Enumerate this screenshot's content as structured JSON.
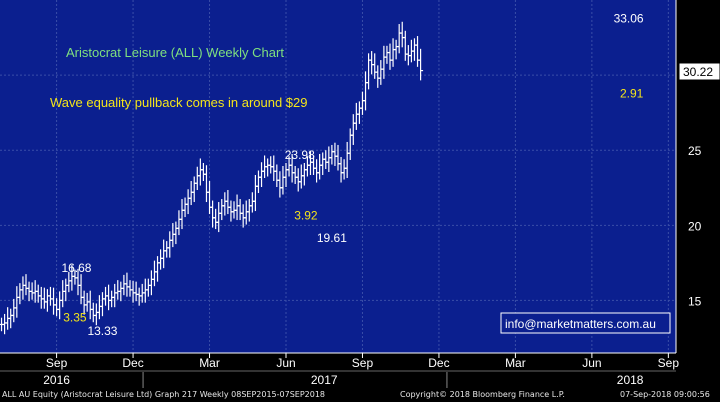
{
  "colors": {
    "background": "#000000",
    "plot_background": "#0b1f8f",
    "grid": "#3a4ea8",
    "bars": "#ffffff",
    "title_text": "#7fe07f",
    "annotation_text": "#f5e51a",
    "label_text": "#ffffff"
  },
  "chart_data": {
    "type": "ohlc",
    "title": "Aristocrat Leisure (ALL) Weekly Chart",
    "subtitle": "Wave equality pullback comes in around $29",
    "y_axis": {
      "ticks": [
        15,
        20,
        25,
        30
      ],
      "ylim": [
        11.5,
        35
      ],
      "position": "right",
      "grid": true
    },
    "x_axis": {
      "month_ticks": [
        {
          "label": "Sep",
          "x": 0.0
        },
        {
          "label": "Dec",
          "x": 0.5
        },
        {
          "label": "Mar",
          "x": 1.0
        },
        {
          "label": "Jun",
          "x": 1.5
        },
        {
          "label": "Sep",
          "x": 2.0
        },
        {
          "label": "Dec",
          "x": 2.5
        },
        {
          "label": "Mar",
          "x": 3.0
        },
        {
          "label": "Jun",
          "x": 3.5
        },
        {
          "label": "Sep",
          "x": 4.0
        }
      ],
      "year_labels": [
        {
          "label": "2016",
          "x": 0.0
        },
        {
          "label": "2017",
          "x": 1.75
        },
        {
          "label": "2018",
          "x": 3.75
        }
      ],
      "xlim": [
        -0.37,
        4.05
      ]
    },
    "last_price": 30.22,
    "price_labels": [
      {
        "text": "16.68",
        "x": 0.13,
        "y": 16.9,
        "color": "white"
      },
      {
        "text": "3.35",
        "x": 0.12,
        "y": 13.6,
        "color": "yellow"
      },
      {
        "text": "13.33",
        "x": 0.3,
        "y": 12.7,
        "color": "white"
      },
      {
        "text": "23.98",
        "x": 1.59,
        "y": 24.4,
        "color": "white"
      },
      {
        "text": "3.92",
        "x": 1.63,
        "y": 20.4,
        "color": "yellow"
      },
      {
        "text": "19.61",
        "x": 1.8,
        "y": 18.9,
        "color": "white"
      },
      {
        "text": "33.06",
        "x": 3.74,
        "y": 33.5,
        "color": "white"
      },
      {
        "text": "2.91",
        "x": 3.76,
        "y": 28.5,
        "color": "yellow"
      }
    ],
    "series": [
      {
        "name": "ALL AU Equity",
        "points": [
          [
            -0.36,
            13.4
          ],
          [
            -0.34,
            13.5
          ],
          [
            -0.32,
            13.8
          ],
          [
            -0.3,
            14.0
          ],
          [
            -0.28,
            14.5
          ],
          [
            -0.26,
            15.2
          ],
          [
            -0.24,
            15.7
          ],
          [
            -0.22,
            16.0
          ],
          [
            -0.2,
            15.8
          ],
          [
            -0.18,
            15.6
          ],
          [
            -0.16,
            15.5
          ],
          [
            -0.14,
            15.6
          ],
          [
            -0.12,
            15.3
          ],
          [
            -0.1,
            15.1
          ],
          [
            -0.08,
            14.9
          ],
          [
            -0.06,
            15.3
          ],
          [
            -0.04,
            15.1
          ],
          [
            -0.02,
            14.7
          ],
          [
            0.0,
            14.4
          ],
          [
            0.02,
            15.0
          ],
          [
            0.04,
            15.6
          ],
          [
            0.06,
            16.0
          ],
          [
            0.08,
            16.3
          ],
          [
            0.1,
            16.6
          ],
          [
            0.12,
            16.5
          ],
          [
            0.14,
            16.0
          ],
          [
            0.16,
            15.2
          ],
          [
            0.18,
            14.7
          ],
          [
            0.2,
            14.9
          ],
          [
            0.22,
            14.4
          ],
          [
            0.24,
            14.0
          ],
          [
            0.26,
            14.2
          ],
          [
            0.28,
            14.6
          ],
          [
            0.3,
            15.1
          ],
          [
            0.32,
            15.3
          ],
          [
            0.34,
            15.0
          ],
          [
            0.36,
            15.2
          ],
          [
            0.38,
            15.5
          ],
          [
            0.4,
            15.6
          ],
          [
            0.42,
            15.8
          ],
          [
            0.44,
            16.1
          ],
          [
            0.46,
            15.9
          ],
          [
            0.48,
            15.7
          ],
          [
            0.5,
            15.5
          ],
          [
            0.52,
            15.4
          ],
          [
            0.54,
            15.3
          ],
          [
            0.56,
            15.5
          ],
          [
            0.58,
            15.7
          ],
          [
            0.6,
            16.0
          ],
          [
            0.62,
            16.4
          ],
          [
            0.64,
            16.9
          ],
          [
            0.66,
            17.5
          ],
          [
            0.68,
            17.8
          ],
          [
            0.7,
            18.3
          ],
          [
            0.72,
            18.5
          ],
          [
            0.74,
            19.0
          ],
          [
            0.76,
            19.4
          ],
          [
            0.78,
            19.8
          ],
          [
            0.8,
            20.4
          ],
          [
            0.82,
            21.0
          ],
          [
            0.84,
            21.4
          ],
          [
            0.86,
            21.8
          ],
          [
            0.88,
            22.2
          ],
          [
            0.9,
            22.8
          ],
          [
            0.92,
            23.3
          ],
          [
            0.94,
            23.7
          ],
          [
            0.96,
            23.4
          ],
          [
            0.98,
            22.2
          ],
          [
            1.0,
            21.2
          ],
          [
            1.02,
            20.5
          ],
          [
            1.04,
            20.2
          ],
          [
            1.06,
            20.8
          ],
          [
            1.08,
            21.3
          ],
          [
            1.1,
            21.6
          ],
          [
            1.12,
            21.2
          ],
          [
            1.14,
            20.9
          ],
          [
            1.16,
            21.0
          ],
          [
            1.18,
            21.3
          ],
          [
            1.2,
            20.8
          ],
          [
            1.22,
            20.5
          ],
          [
            1.24,
            20.9
          ],
          [
            1.26,
            21.3
          ],
          [
            1.28,
            21.6
          ],
          [
            1.3,
            22.6
          ],
          [
            1.32,
            23.2
          ],
          [
            1.34,
            23.6
          ],
          [
            1.36,
            23.9
          ],
          [
            1.38,
            24.0
          ],
          [
            1.4,
            23.9
          ],
          [
            1.42,
            23.6
          ],
          [
            1.44,
            23.0
          ],
          [
            1.46,
            22.5
          ],
          [
            1.48,
            23.2
          ],
          [
            1.5,
            23.7
          ],
          [
            1.52,
            24.0
          ],
          [
            1.54,
            23.5
          ],
          [
            1.56,
            23.2
          ],
          [
            1.58,
            22.9
          ],
          [
            1.6,
            23.3
          ],
          [
            1.62,
            23.7
          ],
          [
            1.64,
            24.0
          ],
          [
            1.66,
            24.2
          ],
          [
            1.68,
            23.8
          ],
          [
            1.7,
            23.5
          ],
          [
            1.72,
            24.0
          ],
          [
            1.74,
            24.4
          ],
          [
            1.76,
            24.2
          ],
          [
            1.78,
            24.5
          ],
          [
            1.8,
            24.9
          ],
          [
            1.82,
            24.6
          ],
          [
            1.84,
            24.1
          ],
          [
            1.86,
            23.5
          ],
          [
            1.88,
            23.8
          ],
          [
            1.9,
            24.8
          ],
          [
            1.92,
            26.0
          ],
          [
            1.94,
            26.8
          ],
          [
            1.96,
            27.4
          ],
          [
            1.98,
            27.8
          ],
          [
            2.0,
            28.3
          ],
          [
            2.02,
            29.5
          ],
          [
            2.04,
            31.0
          ],
          [
            2.06,
            30.7
          ],
          [
            2.08,
            30.2
          ],
          [
            2.1,
            29.8
          ],
          [
            2.12,
            30.4
          ],
          [
            2.14,
            31.2
          ],
          [
            2.16,
            31.5
          ],
          [
            2.18,
            31.0
          ],
          [
            2.2,
            31.7
          ],
          [
            2.22,
            31.9
          ],
          [
            2.24,
            32.8
          ],
          [
            2.26,
            32.5
          ],
          [
            2.28,
            31.4
          ],
          [
            2.3,
            31.3
          ],
          [
            2.32,
            31.6
          ],
          [
            2.34,
            32.0
          ],
          [
            2.36,
            31.0
          ],
          [
            2.38,
            30.3
          ]
        ]
      }
    ]
  },
  "labels": {
    "last_price_tag": "30.22",
    "watermark": "info@marketmatters.com.au"
  },
  "footer": {
    "left": "ALL AU Equity (Aristocrat Leisure Ltd) Graph 217  Weekly 08SEP2015-07SEP2018",
    "center": "Copyright© 2018 Bloomberg Finance L.P.",
    "right": "07-Sep-2018 09:00:56"
  }
}
